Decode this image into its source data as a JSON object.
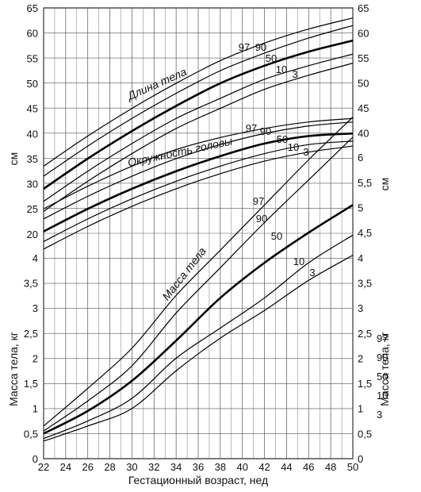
{
  "chart_data": {
    "type": "line",
    "xlabel": "Гестационный возраст, нед",
    "x_ticks": [
      "22",
      "24",
      "26",
      "28",
      "30",
      "32",
      "34",
      "36",
      "38",
      "40",
      "42",
      "44",
      "46",
      "48",
      "50"
    ],
    "xlim": [
      22,
      50
    ],
    "left_axis": {
      "unit_label": "см",
      "mass_label": "Масса тела, кг",
      "cm_ticks": [
        "20",
        "25",
        "30",
        "35",
        "40",
        "45",
        "50",
        "55",
        "60",
        "65"
      ],
      "kg_ticks": [
        "0",
        "0,5",
        "1",
        "1,5",
        "2",
        "2,5",
        "3",
        "3,5",
        "4"
      ]
    },
    "right_axis": {
      "unit_label": "см",
      "mass_label": "Масса тела, кг",
      "cm_ticks": [
        "40",
        "45",
        "50",
        "55",
        "60",
        "65"
      ],
      "mid_ticks": [
        "4,5",
        "5",
        "5,5",
        "6"
      ],
      "kg_ticks": [
        "0",
        "0,5",
        "1",
        "1,5",
        "2",
        "2,5",
        "3",
        "3,5",
        "4"
      ]
    },
    "percentile_legend": [
      "97",
      "90",
      "50",
      "10",
      "3"
    ],
    "groups": [
      {
        "label": "Длина тела",
        "unit": "см",
        "x": [
          22,
          26,
          30,
          34,
          38,
          42,
          46,
          50
        ],
        "series": [
          {
            "name": "97",
            "values": [
              33.5,
              39.5,
              45.0,
              50.0,
              54.5,
              58.0,
              60.8,
              63.0
            ]
          },
          {
            "name": "90",
            "values": [
              31.5,
              37.5,
              43.0,
              48.0,
              52.5,
              56.0,
              59.0,
              61.5
            ]
          },
          {
            "name": "50",
            "values": [
              29.0,
              35.0,
              40.5,
              45.5,
              50.0,
              53.5,
              56.3,
              58.5
            ]
          },
          {
            "name": "10",
            "values": [
              26.5,
              32.5,
              38.0,
              43.0,
              47.0,
              50.8,
              53.5,
              55.8
            ]
          },
          {
            "name": "3",
            "values": [
              24.5,
              30.5,
              36.0,
              41.0,
              45.0,
              48.8,
              51.6,
              54.0
            ]
          }
        ]
      },
      {
        "label": "Окружность головы",
        "unit": "см",
        "x": [
          22,
          26,
          30,
          34,
          38,
          42,
          46,
          50
        ],
        "series": [
          {
            "name": "97",
            "values": [
              25.0,
              29.5,
              33.5,
              36.8,
              39.2,
              41.0,
              42.3,
              43.0
            ]
          },
          {
            "name": "90",
            "values": [
              23.0,
              27.5,
              31.5,
              35.0,
              37.8,
              40.0,
              41.5,
              42.3
            ]
          },
          {
            "name": "50",
            "values": [
              20.5,
              25.0,
              29.0,
              32.5,
              35.5,
              38.0,
              39.5,
              40.0
            ]
          },
          {
            "name": "10",
            "values": [
              18.5,
              23.0,
              27.0,
              30.5,
              33.5,
              36.0,
              37.8,
              38.5
            ]
          },
          {
            "name": "3",
            "values": [
              17.0,
              21.5,
              25.5,
              29.0,
              32.0,
              34.5,
              36.3,
              37.5
            ]
          }
        ]
      },
      {
        "label": "Масса тела",
        "unit": "кг",
        "x": [
          22,
          26,
          30,
          34,
          38,
          42,
          46,
          50
        ],
        "series": [
          {
            "name": "97",
            "values": [
              0.65,
              1.4,
              2.2,
              3.25,
              4.15,
              5.05,
              5.95,
              6.8
            ]
          },
          {
            "name": "90",
            "values": [
              0.55,
              1.15,
              1.85,
              2.9,
              3.8,
              4.7,
              5.55,
              6.4
            ]
          },
          {
            "name": "50",
            "values": [
              0.5,
              0.95,
              1.55,
              2.35,
              3.2,
              3.9,
              4.5,
              5.05
            ]
          },
          {
            "name": "10",
            "values": [
              0.4,
              0.75,
              1.2,
              2.0,
              2.6,
              3.2,
              3.9,
              4.45
            ]
          },
          {
            "name": "3",
            "values": [
              0.35,
              0.65,
              1.0,
              1.75,
              2.4,
              2.95,
              3.55,
              4.05
            ]
          }
        ]
      }
    ]
  }
}
